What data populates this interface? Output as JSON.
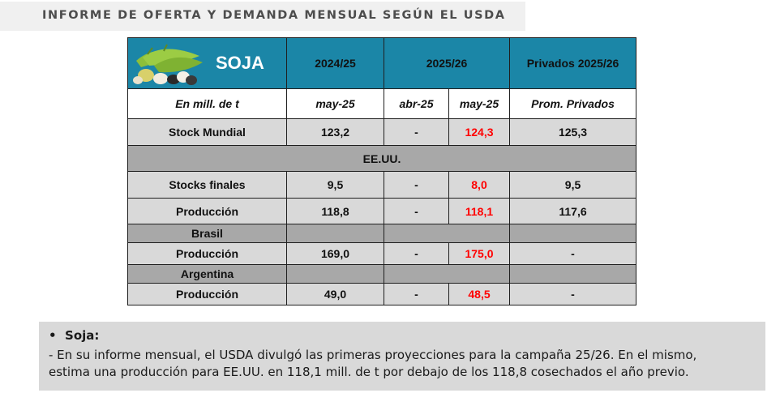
{
  "header": {
    "title": "INFORME DE OFERTA Y DEMANDA MENSUAL SEGÚN EL USDA"
  },
  "table": {
    "title": "SOJA",
    "image": "soybean-pods-image",
    "col_headers": {
      "c1": "2024/25",
      "c2": "2025/26",
      "c3": "Privados 2025/26"
    },
    "sub_headers": {
      "unit": "En mill. de t",
      "may25_prev": "may-25",
      "abr25": "abr-25",
      "may25": "may-25",
      "prom": "Prom. Privados"
    },
    "stock_mundial": {
      "label": "Stock Mundial",
      "v2425": "123,2",
      "abr": "-",
      "may": "124,3",
      "priv": "125,3"
    },
    "eeuu": {
      "label": "EE.UU.",
      "stocks": {
        "label": "Stocks finales",
        "v2425": "9,5",
        "abr": "-",
        "may": "8,0",
        "priv": "9,5"
      },
      "prod": {
        "label": "Producción",
        "v2425": "118,8",
        "abr": "-",
        "may": "118,1",
        "priv": "117,6"
      }
    },
    "brasil": {
      "label": "Brasil",
      "prod": {
        "label": "Producción",
        "v2425": "169,0",
        "abr": "-",
        "may": "175,0",
        "priv": "-"
      }
    },
    "argentina": {
      "label": "Argentina",
      "prod": {
        "label": "Producción",
        "v2425": "49,0",
        "abr": "-",
        "may": "48,5",
        "priv": "-"
      }
    },
    "colors": {
      "header_bg": "#1b86a7",
      "highlight": "#ff0000",
      "shade": "#d9d9d9",
      "band": "#a8a8a8"
    }
  },
  "note": {
    "bullet": "•",
    "heading": "Soja:",
    "line1": "- En su informe mensual, el USDA divulgó las primeras proyecciones para la campaña 25/26. En el mismo,",
    "line2": "estima una producción para EE.UU. en 118,1 mill. de t por debajo de los 118,8 cosechados el año previo."
  }
}
